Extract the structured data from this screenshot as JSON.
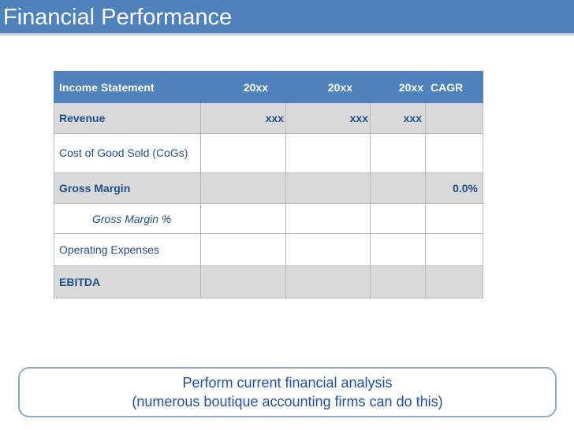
{
  "title": "Financial Performance",
  "table": {
    "headers": [
      "Income Statement",
      "20xx",
      "20xx",
      "20xx",
      "CAGR"
    ],
    "rows": [
      {
        "label": "Revenue",
        "cells": [
          "xxx",
          "xxx",
          "xxx",
          ""
        ]
      },
      {
        "label": "Cost of Good Sold (CoGs)",
        "cells": [
          "",
          "",
          "",
          ""
        ]
      },
      {
        "label": "Gross Margin",
        "cells": [
          "",
          "",
          "",
          "0.0%"
        ]
      },
      {
        "label": "Gross Margin %",
        "cells": [
          "",
          "",
          "",
          ""
        ]
      },
      {
        "label": "Operating Expenses",
        "cells": [
          "",
          "",
          "",
          ""
        ]
      },
      {
        "label": "EBITDA",
        "cells": [
          "",
          "",
          "",
          ""
        ]
      }
    ]
  },
  "callout": {
    "line1": "Perform current financial analysis",
    "line2": "(numerous boutique accounting firms can do this)"
  },
  "colors": {
    "accent": "#4f81bd",
    "row_shade": "#d9d9d9",
    "text_blue": "#1f4e8c"
  }
}
